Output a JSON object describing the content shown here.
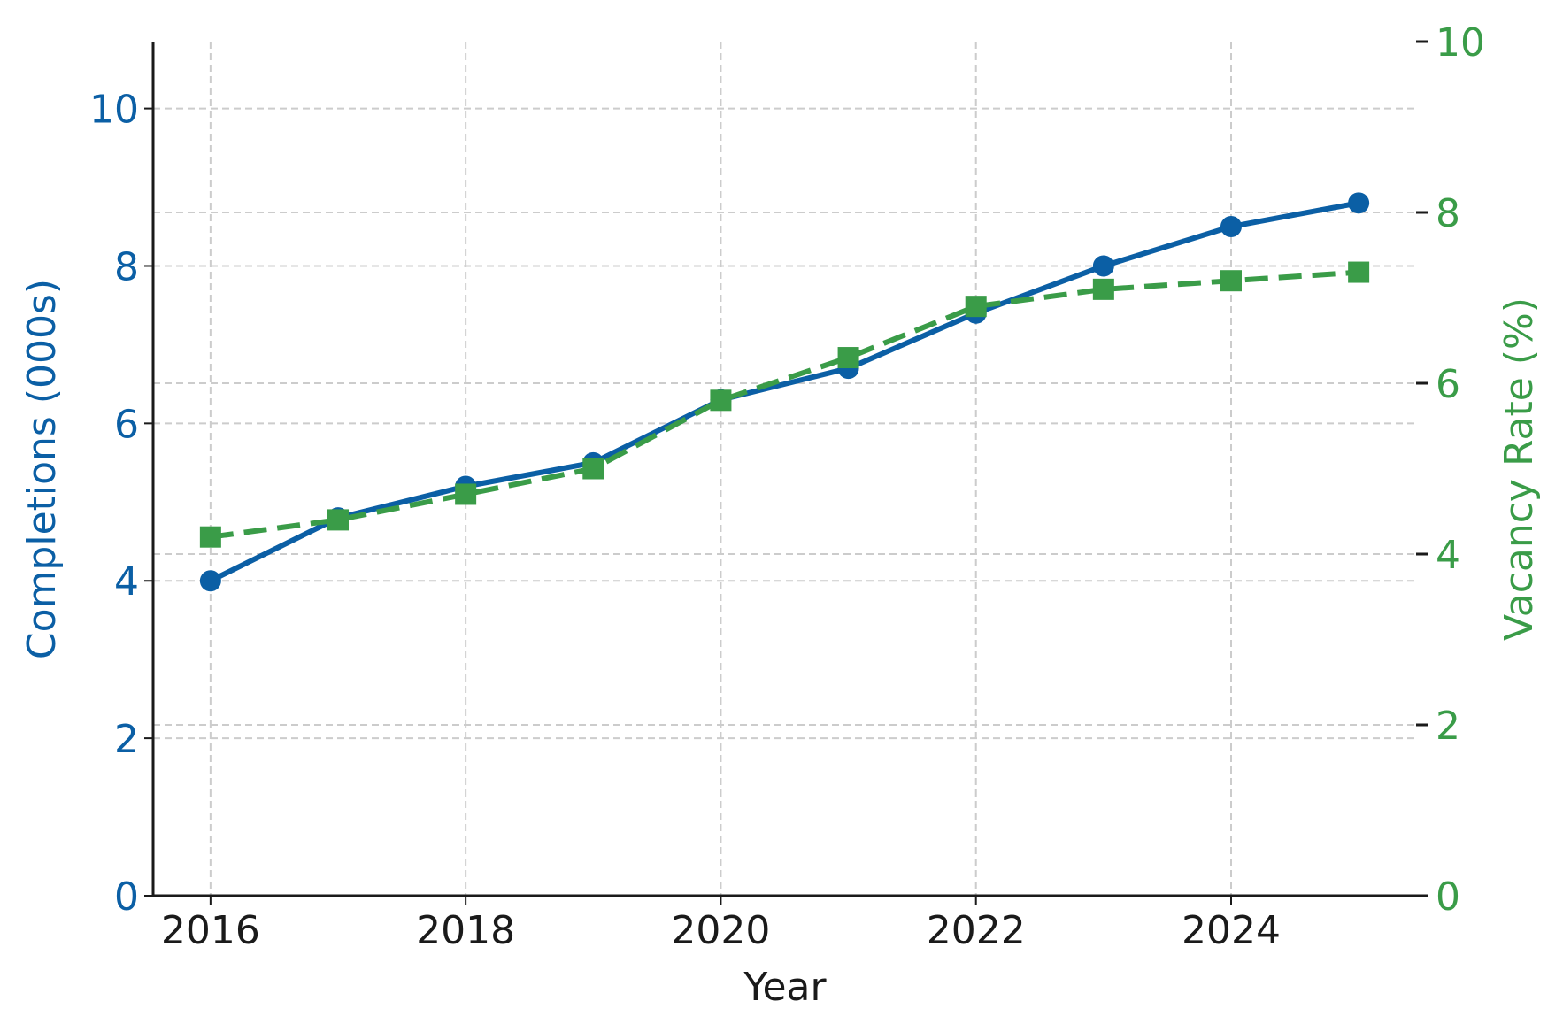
{
  "chart_data": {
    "type": "line",
    "x": [
      2016,
      2017,
      2018,
      2019,
      2020,
      2021,
      2022,
      2023,
      2024,
      2025
    ],
    "xlabel": "Year",
    "x_ticks": [
      2016,
      2018,
      2020,
      2022,
      2024
    ],
    "x_tick_labels": [
      "2016",
      "2018",
      "2020",
      "2022",
      "2024"
    ],
    "xlim": [
      2015.55,
      2025.45
    ],
    "y_left": {
      "label": "Completions (000s)",
      "lim": [
        0,
        10.85
      ],
      "ticks": [
        0,
        2,
        4,
        6,
        8,
        10
      ],
      "tick_labels": [
        "0",
        "2",
        "4",
        "6",
        "8",
        "10"
      ],
      "color": "#0b5fa5"
    },
    "y_right": {
      "label": "Vacancy Rate (%)",
      "lim": [
        0,
        10
      ],
      "ticks": [
        0,
        2,
        4,
        6,
        8,
        10
      ],
      "tick_labels": [
        "0",
        "2",
        "4",
        "6",
        "8",
        "10"
      ],
      "color": "#3a9c48"
    },
    "grid": true,
    "legend": "none",
    "series": [
      {
        "axis": "left",
        "color": "#0b5fa5",
        "line_style": "solid",
        "marker": "circle",
        "values": [
          4.0,
          4.8,
          5.2,
          5.5,
          6.3,
          6.7,
          7.4,
          8.0,
          8.5,
          8.8
        ]
      },
      {
        "axis": "right",
        "color": "#3a9c48",
        "line_style": "dashed",
        "marker": "square",
        "values": [
          4.2,
          4.4,
          4.7,
          5.0,
          5.8,
          6.3,
          6.9,
          7.1,
          7.2,
          7.3
        ]
      }
    ]
  },
  "colors": {
    "axis": "#1a1a1a",
    "grid": "#cccccc",
    "text": "#1a1a1a"
  }
}
